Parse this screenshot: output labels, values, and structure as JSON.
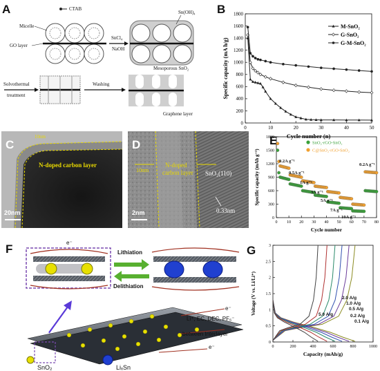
{
  "panels": {
    "A": {
      "label": "A",
      "ctab": "CTAB",
      "micelle": "Micelle",
      "go_layer": "GO layer",
      "reagent_top": "SnCl₄",
      "reagent_bottom": "NaOH",
      "product": "Sn(OH)₄",
      "step1": "Solvothermal",
      "step1b": "treatment",
      "step2": "Washing",
      "meso": "Mesoporous SnO₂",
      "graphene": "Graphene layer"
    },
    "B": {
      "label": "B"
    },
    "C": {
      "label": "C",
      "scale": "20nm",
      "annotation": "N-doped carbon layer",
      "thick": "10nm"
    },
    "D": {
      "label": "D",
      "scale": "2nm",
      "annotation1": "N-doped",
      "annotation2": "carbon layer",
      "thick": "10nm",
      "plane": "SnO₂(110)",
      "spacing": "0.33nm"
    },
    "E": {
      "label": "E"
    },
    "F": {
      "label": "F",
      "lithiation": "Lithiation",
      "delithiation": "Delithiation",
      "ions": "Li⁺, EC, DEC, PF₆⁻",
      "between": "between Interlayer",
      "legend_sno2": "SnO₂",
      "legend_lisn": "LiₓSn",
      "electron": "e⁻"
    },
    "G": {
      "label": "G"
    }
  },
  "chart_data": [
    {
      "id": "B",
      "type": "line",
      "xlabel": "Cycle number (n)",
      "ylabel": "Specific capacity (mA h/g)",
      "xlim": [
        0,
        50
      ],
      "ylim": [
        0,
        1800
      ],
      "xticks": [
        0,
        10,
        20,
        30,
        40,
        50
      ],
      "yticks": [
        0,
        200,
        400,
        600,
        800,
        1000,
        1200,
        1400,
        1600,
        1800
      ],
      "legend_position": "top-right",
      "series": [
        {
          "name": "M-SnO₂",
          "marker": "triangle",
          "x": [
            1,
            2,
            3,
            4,
            5,
            6,
            7,
            8,
            10,
            12,
            14,
            16,
            18,
            20,
            22,
            24,
            26,
            28,
            30,
            35,
            40,
            45,
            50
          ],
          "values": [
            1400,
            720,
            680,
            670,
            660,
            650,
            590,
            520,
            400,
            320,
            250,
            190,
            140,
            100,
            80,
            60,
            55,
            52,
            50,
            50,
            48,
            48,
            47
          ]
        },
        {
          "name": "G-SnO₂",
          "marker": "diamond",
          "x": [
            1,
            2,
            3,
            4,
            5,
            6,
            8,
            10,
            15,
            20,
            25,
            30,
            35,
            40,
            45,
            50
          ],
          "values": [
            1450,
            1000,
            900,
            860,
            830,
            800,
            760,
            730,
            670,
            620,
            590,
            560,
            540,
            525,
            510,
            500
          ]
        },
        {
          "name": "G-M-SnO₂",
          "marker": "circle",
          "x": [
            1,
            2,
            3,
            4,
            5,
            6,
            8,
            10,
            15,
            20,
            25,
            30,
            35,
            40,
            45,
            50
          ],
          "values": [
            1580,
            1150,
            1100,
            1070,
            1050,
            1040,
            1020,
            1000,
            970,
            950,
            930,
            910,
            895,
            880,
            865,
            850
          ]
        }
      ]
    },
    {
      "id": "E",
      "type": "scatter",
      "xlabel": "Cycle number",
      "ylabel": "Specific capacity (mAh g⁻¹)",
      "xlim": [
        0,
        80
      ],
      "ylim": [
        0,
        1800
      ],
      "xticks": [
        0,
        10,
        20,
        30,
        40,
        50,
        60,
        70,
        80
      ],
      "yticks": [
        0,
        300,
        600,
        900,
        1200,
        1500,
        1800
      ],
      "rate_labels": [
        "0.2A g⁻¹",
        "0.5A g⁻¹",
        "1A g⁻¹",
        "3A g⁻¹",
        "5A g⁻¹",
        "7A g⁻¹",
        "10A g⁻¹",
        "0.2A g⁻¹"
      ],
      "series": [
        {
          "name": "SnO₂-rGO-SnO₂",
          "color": "#3aa03a",
          "plateaus": [
            [
              1,
              1500
            ],
            [
              2,
              1000
            ],
            [
              3,
              900
            ],
            [
              10,
              850
            ],
            [
              11,
              750
            ],
            [
              20,
              700
            ],
            [
              21,
              600
            ],
            [
              30,
              560
            ],
            [
              31,
              500
            ],
            [
              40,
              470
            ],
            [
              41,
              350
            ],
            [
              50,
              320
            ],
            [
              51,
              220
            ],
            [
              60,
              200
            ],
            [
              61,
              150
            ],
            [
              70,
              140
            ],
            [
              71,
              600
            ],
            [
              80,
              580
            ]
          ]
        },
        {
          "name": "C@SnO₂-rGO-SnO₂",
          "color": "#f0a030",
          "plateaus": [
            [
              1,
              1650
            ],
            [
              2,
              1250
            ],
            [
              3,
              1150
            ],
            [
              10,
              1100
            ],
            [
              11,
              950
            ],
            [
              20,
              900
            ],
            [
              21,
              820
            ],
            [
              30,
              780
            ],
            [
              31,
              700
            ],
            [
              40,
              670
            ],
            [
              41,
              580
            ],
            [
              50,
              550
            ],
            [
              51,
              450
            ],
            [
              60,
              420
            ],
            [
              61,
              300
            ],
            [
              70,
              280
            ],
            [
              71,
              1020
            ],
            [
              80,
              1000
            ]
          ]
        }
      ]
    },
    {
      "id": "G",
      "type": "line",
      "xlabel": "Capacity (mAh/g)",
      "ylabel": "Voltage (V vs. Li/Li⁺)",
      "xlim": [
        0,
        1000
      ],
      "ylim": [
        0,
        3.0
      ],
      "xticks": [
        0,
        200,
        400,
        600,
        800,
        1000
      ],
      "yticks": [
        0,
        0.5,
        1.0,
        1.5,
        2.0,
        2.5,
        3.0
      ],
      "rate_labels": [
        "2.0 A/g",
        "1.0 A/g",
        "0.5 A/g",
        "5.0 A/g",
        "0.2 A/g",
        "0.1 A/g"
      ],
      "series": [
        {
          "name": "0.1 A/g",
          "color": "#8a8a20",
          "capacity": 820
        },
        {
          "name": "0.2 A/g",
          "color": "#6a3a9a",
          "capacity": 760
        },
        {
          "name": "0.5 A/g",
          "color": "#3050b0",
          "capacity": 690
        },
        {
          "name": "1.0 A/g",
          "color": "#2a8a6a",
          "capacity": 620
        },
        {
          "name": "2.0 A/g",
          "color": "#b03030",
          "capacity": 540
        },
        {
          "name": "5.0 A/g",
          "color": "#404040",
          "capacity": 450
        }
      ]
    }
  ]
}
